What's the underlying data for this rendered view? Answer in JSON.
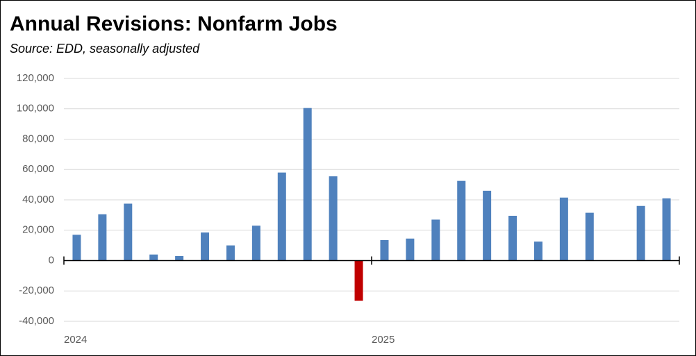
{
  "chart_data": {
    "type": "bar",
    "title": "Annual Revisions:  Nonfarm Jobs",
    "subtitle": "Source:  EDD, seasonally adjusted",
    "categories": [
      "2024",
      null,
      null,
      null,
      null,
      null,
      null,
      null,
      null,
      null,
      null,
      null,
      "2025",
      null,
      null,
      null,
      null,
      null,
      null,
      null,
      null,
      null,
      null,
      null
    ],
    "values": [
      17000,
      30500,
      37500,
      4000,
      3000,
      18500,
      10000,
      23000,
      58000,
      100500,
      55500,
      -26500,
      13500,
      14500,
      27000,
      52500,
      46000,
      29500,
      12500,
      41500,
      31500,
      null,
      36000,
      41000
    ],
    "color": "#4f81bd",
    "negative_color": "#c00000",
    "ylim": [
      -40000,
      120000
    ],
    "yticks": [
      {
        "value": -40000,
        "label": "-40,000"
      },
      {
        "value": -20000,
        "label": "-20,000"
      },
      0,
      {
        "value": 20000,
        "label": "20,000"
      },
      {
        "value": 40000,
        "label": "40,000"
      },
      {
        "value": 60000,
        "label": "60,000"
      },
      {
        "value": 80000,
        "label": "80,000"
      },
      {
        "value": 100000,
        "label": "100,000"
      },
      {
        "value": 120000,
        "label": "120,000"
      }
    ],
    "grid": true
  }
}
